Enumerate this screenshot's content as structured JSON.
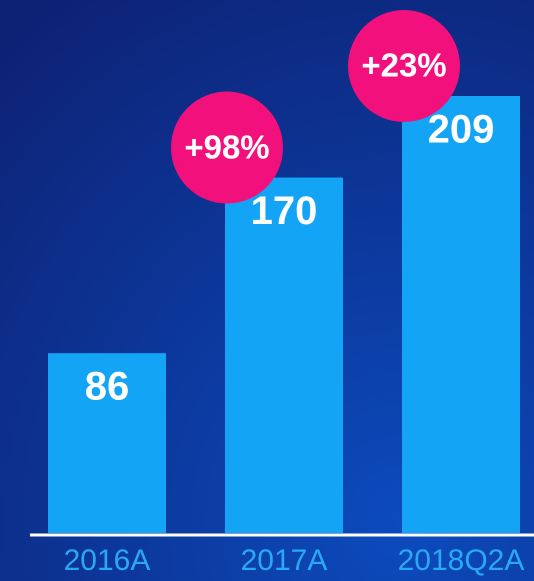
{
  "chart_data": {
    "type": "bar",
    "categories": [
      "2016A",
      "2017A",
      "2018Q2A"
    ],
    "values": [
      86,
      170,
      209
    ],
    "color": "#14a4f6",
    "annotations": [
      "+98%",
      "+23%"
    ],
    "annotation_color": "#f2117c"
  }
}
